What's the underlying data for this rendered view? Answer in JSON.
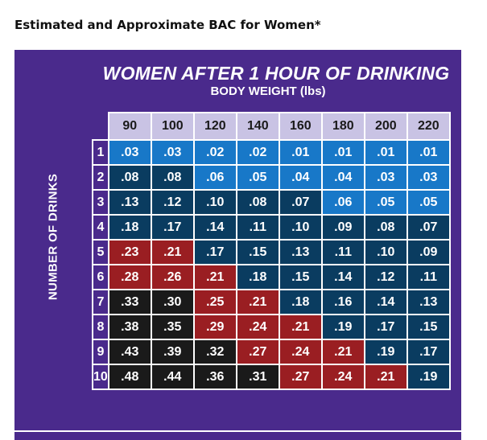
{
  "heading": "Estimated and Approximate BAC for Women*",
  "chart": {
    "title": "WOMEN AFTER 1 HOUR OF DRINKING",
    "subtitle": "BODY WEIGHT (lbs)",
    "row_axis_label": "NUMBER OF DRINKS",
    "colors": {
      "blue": "#1878c8",
      "navy": "#0a3c60",
      "red": "#9a1e22",
      "black": "#1a1a1a",
      "header": "#c9c3e4",
      "panel": "#4a2a8c"
    }
  },
  "chart_data": {
    "type": "table",
    "columns": [
      "90",
      "100",
      "120",
      "140",
      "160",
      "180",
      "200",
      "220"
    ],
    "rows": [
      {
        "drinks": "1",
        "values": [
          ".03",
          ".03",
          ".02",
          ".02",
          ".01",
          ".01",
          ".01",
          ".01"
        ],
        "shades": [
          "blue",
          "blue",
          "blue",
          "blue",
          "blue",
          "blue",
          "blue",
          "blue"
        ]
      },
      {
        "drinks": "2",
        "values": [
          ".08",
          ".08",
          ".06",
          ".05",
          ".04",
          ".04",
          ".03",
          ".03"
        ],
        "shades": [
          "navy",
          "navy",
          "blue",
          "blue",
          "blue",
          "blue",
          "blue",
          "blue"
        ]
      },
      {
        "drinks": "3",
        "values": [
          ".13",
          ".12",
          ".10",
          ".08",
          ".07",
          ".06",
          ".05",
          ".05"
        ],
        "shades": [
          "navy",
          "navy",
          "navy",
          "navy",
          "navy",
          "blue",
          "blue",
          "blue"
        ]
      },
      {
        "drinks": "4",
        "values": [
          ".18",
          ".17",
          ".14",
          ".11",
          ".10",
          ".09",
          ".08",
          ".07"
        ],
        "shades": [
          "navy",
          "navy",
          "navy",
          "navy",
          "navy",
          "navy",
          "navy",
          "navy"
        ]
      },
      {
        "drinks": "5",
        "values": [
          ".23",
          ".21",
          ".17",
          ".15",
          ".13",
          ".11",
          ".10",
          ".09"
        ],
        "shades": [
          "red",
          "red",
          "navy",
          "navy",
          "navy",
          "navy",
          "navy",
          "navy"
        ]
      },
      {
        "drinks": "6",
        "values": [
          ".28",
          ".26",
          ".21",
          ".18",
          ".15",
          ".14",
          ".12",
          ".11"
        ],
        "shades": [
          "red",
          "red",
          "red",
          "navy",
          "navy",
          "navy",
          "navy",
          "navy"
        ]
      },
      {
        "drinks": "7",
        "values": [
          ".33",
          ".30",
          ".25",
          ".21",
          ".18",
          ".16",
          ".14",
          ".13"
        ],
        "shades": [
          "black",
          "black",
          "red",
          "red",
          "navy",
          "navy",
          "navy",
          "navy"
        ]
      },
      {
        "drinks": "8",
        "values": [
          ".38",
          ".35",
          ".29",
          ".24",
          ".21",
          ".19",
          ".17",
          ".15"
        ],
        "shades": [
          "black",
          "black",
          "red",
          "red",
          "red",
          "navy",
          "navy",
          "navy"
        ]
      },
      {
        "drinks": "9",
        "values": [
          ".43",
          ".39",
          ".32",
          ".27",
          ".24",
          ".21",
          ".19",
          ".17"
        ],
        "shades": [
          "black",
          "black",
          "black",
          "red",
          "red",
          "red",
          "navy",
          "navy"
        ]
      },
      {
        "drinks": "10",
        "values": [
          ".48",
          ".44",
          ".36",
          ".31",
          ".27",
          ".24",
          ".21",
          ".19"
        ],
        "shades": [
          "black",
          "black",
          "black",
          "black",
          "red",
          "red",
          "red",
          "navy"
        ]
      }
    ]
  }
}
